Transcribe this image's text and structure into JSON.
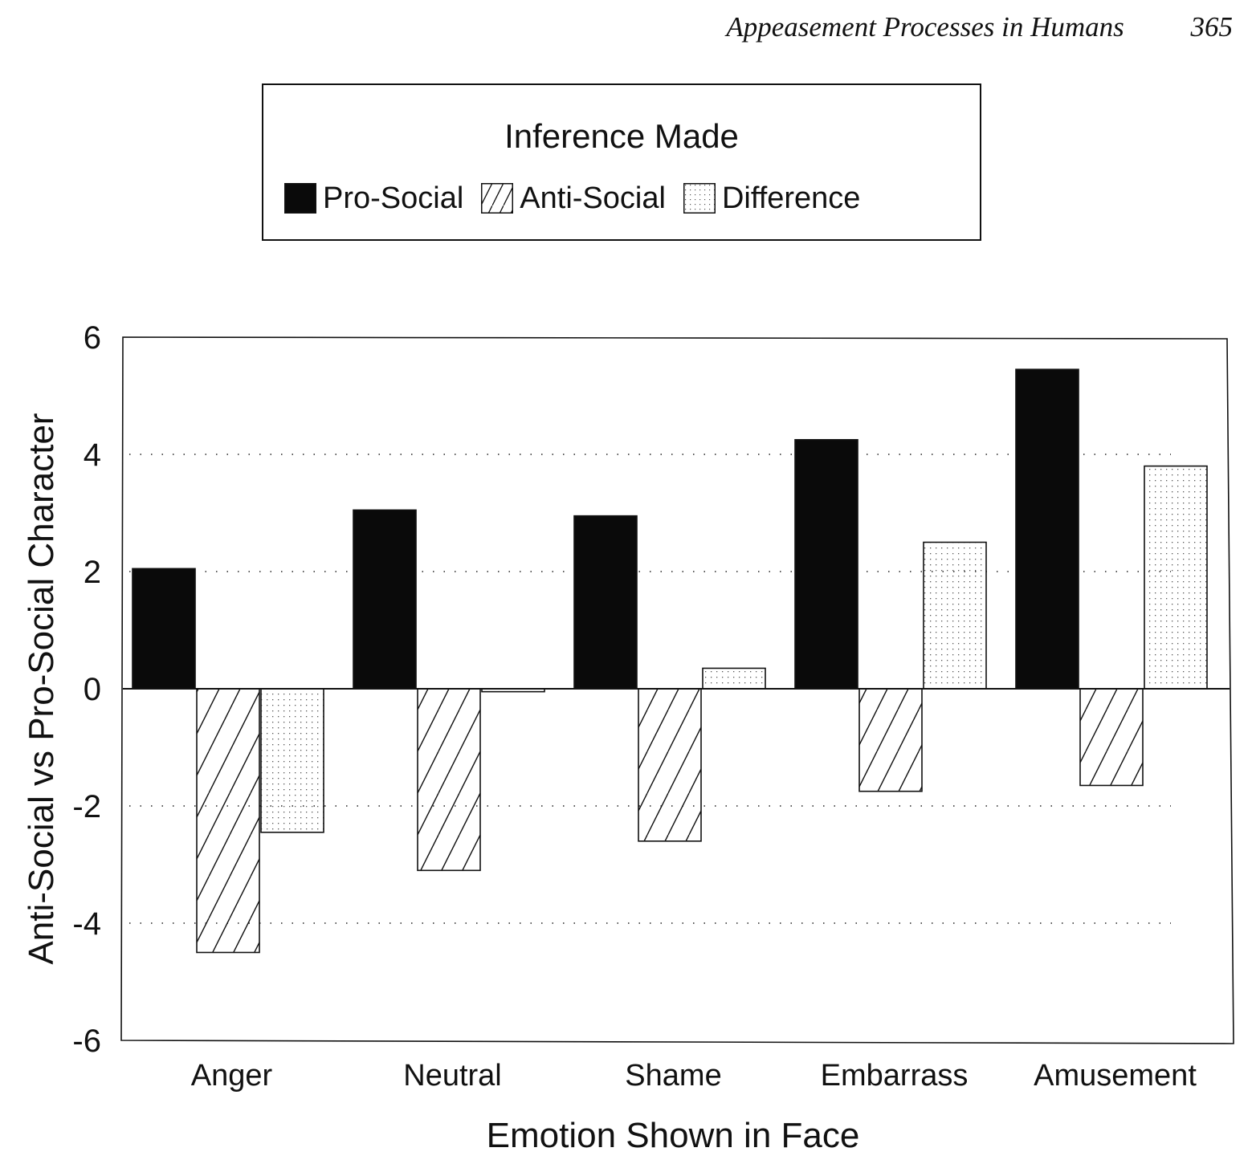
{
  "header": {
    "running_title": "Appeasement Processes in Humans",
    "page_number": "365"
  },
  "legend": {
    "title": "Inference Made",
    "items": [
      {
        "label": "Pro-Social",
        "pattern": "solid"
      },
      {
        "label": "Anti-Social",
        "pattern": "hatch"
      },
      {
        "label": "Difference",
        "pattern": "dots"
      }
    ]
  },
  "colors": {
    "ink": "#111111",
    "background": "#ffffff",
    "solid_fill": "#0a0a0a"
  },
  "chart_data": {
    "type": "bar",
    "title": "",
    "xlabel": "Emotion Shown in Face",
    "ylabel": "Anti-Social vs Pro-Social Character",
    "categories": [
      "Anger",
      "Neutral",
      "Shame",
      "Embarrass",
      "Amusement"
    ],
    "series": [
      {
        "name": "Pro-Social",
        "values": [
          2.05,
          3.05,
          2.95,
          4.25,
          5.45
        ]
      },
      {
        "name": "Anti-Social",
        "values": [
          -4.5,
          -3.1,
          -2.6,
          -1.75,
          -1.65
        ]
      },
      {
        "name": "Difference",
        "values": [
          -2.45,
          -0.05,
          0.35,
          2.5,
          3.8
        ]
      }
    ],
    "ylim": [
      -6,
      6
    ],
    "yticks": [
      6,
      4,
      2,
      0,
      -2,
      -4,
      -6
    ],
    "ytick_labels": [
      "6",
      "4",
      "2",
      "0",
      "-2",
      "-4",
      "-6"
    ],
    "grid": "dotted horizontal at 4, 2, -2, -4",
    "legend_position": "top-center"
  }
}
